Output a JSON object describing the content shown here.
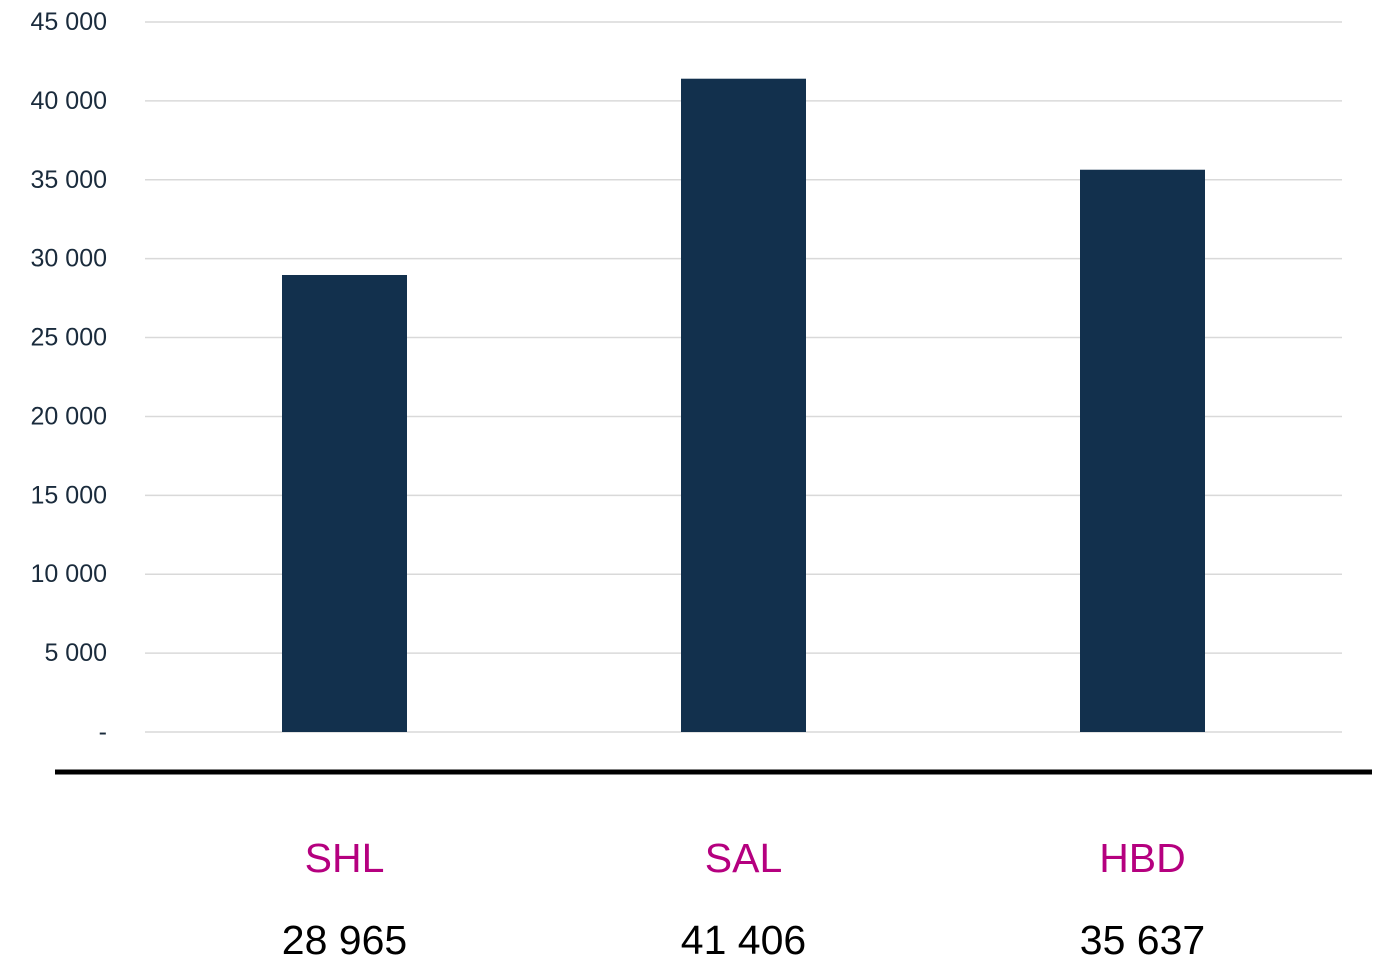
{
  "chart_data": {
    "type": "bar",
    "categories": [
      "SHL",
      "SAL",
      "HBD"
    ],
    "values": [
      28965,
      41406,
      35637
    ],
    "value_labels": [
      "28 965",
      "41 406",
      "35 637"
    ],
    "ylim": [
      0,
      45000
    ],
    "yticks": [
      0,
      5000,
      10000,
      15000,
      20000,
      25000,
      30000,
      35000,
      40000,
      45000
    ],
    "ytick_labels": [
      "-",
      "5 000",
      "10 000",
      "15 000",
      "20 000",
      "25 000",
      "30 000",
      "35 000",
      "40 000",
      "45 000"
    ],
    "grid": true,
    "title": "",
    "xlabel": "",
    "ylabel": "",
    "colors": {
      "bar": "#12304d",
      "category_label": "#b5007f",
      "gridline": "#d9d9d9",
      "separator": "#000000"
    }
  }
}
